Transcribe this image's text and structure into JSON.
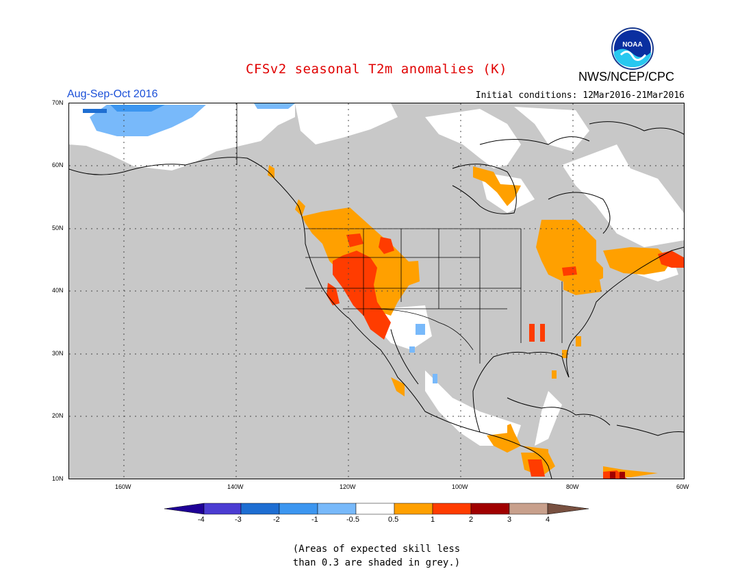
{
  "title": "CFSv2 seasonal T2m anomalies (K)",
  "organization": "NWS/NCEP/CPC",
  "logo_text": "NOAA",
  "season": "Aug-Sep-Oct 2016",
  "initial_conditions": "Initial conditions: 12Mar2016-21Mar2016",
  "latitude_labels": [
    "70N",
    "60N",
    "50N",
    "40N",
    "30N",
    "20N",
    "10N"
  ],
  "longitude_labels": [
    "160W",
    "140W",
    "120W",
    "100W",
    "80W",
    "60W"
  ],
  "colorbar": {
    "tick_labels": [
      "-4",
      "-3",
      "-2",
      "-1",
      "-0.5",
      "0.5",
      "1",
      "2",
      "3",
      "4"
    ],
    "colors": [
      "#1e0096",
      "#4b3cd2",
      "#1e6ed2",
      "#3c96f0",
      "#78b9fa",
      "#ffffff",
      "#ffa000",
      "#ff3c00",
      "#a00000",
      "#c8a08c",
      "#785040"
    ]
  },
  "note_line1": "(Areas of expected skill less",
  "note_line2": "than 0.3 are shaded in grey.)"
}
